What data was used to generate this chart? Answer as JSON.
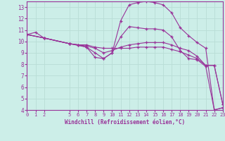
{
  "xlabel": "Windchill (Refroidissement éolien,°C)",
  "bg_color": "#cceee8",
  "line_color": "#993399",
  "grid_color": "#aaddcc",
  "xmin": 0,
  "xmax": 23,
  "ymin": 4,
  "ymax": 13.5,
  "xticks": [
    0,
    1,
    2,
    5,
    6,
    7,
    8,
    9,
    10,
    11,
    12,
    13,
    14,
    15,
    16,
    17,
    18,
    19,
    20,
    21,
    22,
    23
  ],
  "yticks": [
    4,
    5,
    6,
    7,
    8,
    9,
    10,
    11,
    12,
    13
  ],
  "line1_x": [
    0,
    1,
    2,
    5,
    6,
    7,
    8,
    9,
    10,
    11,
    12,
    13,
    14,
    15,
    16,
    17,
    18,
    19,
    20,
    21,
    22,
    23
  ],
  "line1_y": [
    10.6,
    10.8,
    10.3,
    9.8,
    9.7,
    9.7,
    9.5,
    9.4,
    9.4,
    9.4,
    9.4,
    9.5,
    9.5,
    9.5,
    9.5,
    9.3,
    9.1,
    8.8,
    8.5,
    7.9,
    7.9,
    4.5
  ],
  "line2_x": [
    0,
    2,
    5,
    6,
    7,
    8,
    9,
    10,
    11,
    12,
    13,
    14,
    15,
    16,
    17,
    18,
    19,
    20,
    21,
    22,
    23
  ],
  "line2_y": [
    10.6,
    10.3,
    9.8,
    9.7,
    9.6,
    9.4,
    9.0,
    9.2,
    9.5,
    9.7,
    9.8,
    9.9,
    9.9,
    9.9,
    9.7,
    9.4,
    9.2,
    8.7,
    7.9,
    7.9,
    4.5
  ],
  "line3_x": [
    0,
    2,
    5,
    6,
    7,
    8,
    9,
    10,
    11,
    12,
    13,
    14,
    15,
    16,
    17,
    18,
    19,
    20,
    21,
    22,
    23
  ],
  "line3_y": [
    10.6,
    10.3,
    9.8,
    9.7,
    9.5,
    9.0,
    8.5,
    9.0,
    10.4,
    11.3,
    11.2,
    11.1,
    11.1,
    11.0,
    10.4,
    9.2,
    8.5,
    8.4,
    7.8,
    4.0,
    4.2
  ],
  "line4_x": [
    0,
    2,
    5,
    7,
    8,
    9,
    10,
    11,
    12,
    13,
    14,
    15,
    16,
    17,
    18,
    19,
    20,
    21,
    22,
    23
  ],
  "line4_y": [
    10.6,
    10.3,
    9.8,
    9.5,
    8.6,
    8.5,
    9.0,
    11.8,
    13.2,
    13.4,
    13.5,
    13.4,
    13.2,
    12.5,
    11.2,
    10.5,
    9.9,
    9.4,
    4.0,
    4.2
  ]
}
